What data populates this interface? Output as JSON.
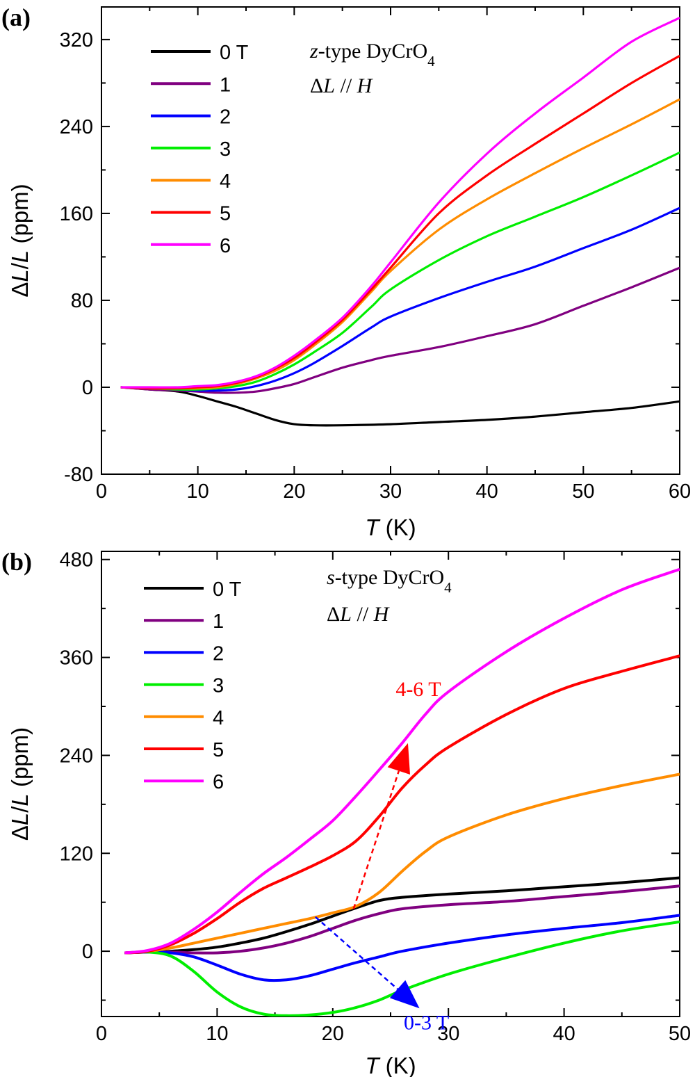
{
  "chart_data": [
    {
      "panel_label": "(a)",
      "type": "line",
      "xlabel": "T (K)",
      "ylabel": "ΔL/L (ppm)",
      "xlim": [
        0,
        60
      ],
      "ylim": [
        -80,
        350
      ],
      "xticks": [
        0,
        10,
        20,
        30,
        40,
        50,
        60
      ],
      "yticks": [
        -80,
        0,
        80,
        160,
        240,
        320
      ],
      "legend_unit": "T",
      "legend_position": "top-left",
      "annotation_lines": [
        "z-type DyCrO4",
        "ΔL // H"
      ],
      "series": [
        {
          "name": "0",
          "color": "#000000",
          "x": [
            2,
            5,
            8,
            10,
            12,
            14,
            16,
            18,
            20,
            22,
            25,
            30,
            35,
            40,
            45,
            50,
            55,
            60
          ],
          "y": [
            0,
            -2,
            -4,
            -8,
            -13,
            -18,
            -24,
            -30,
            -34,
            -35,
            -35,
            -34,
            -32,
            -30,
            -27,
            -23,
            -19,
            -13
          ]
        },
        {
          "name": "1",
          "color": "#800080",
          "x": [
            2,
            5,
            8,
            10,
            12,
            14,
            16,
            18,
            20,
            22,
            25,
            28,
            30,
            35,
            40,
            45,
            50,
            55,
            60
          ],
          "y": [
            0,
            -2,
            -3,
            -4,
            -5,
            -5,
            -4,
            -1,
            3,
            9,
            18,
            25,
            29,
            37,
            47,
            58,
            75,
            92,
            110
          ]
        },
        {
          "name": "2",
          "color": "#0000ff",
          "x": [
            2,
            5,
            8,
            10,
            12,
            14,
            16,
            18,
            20,
            22,
            25,
            28,
            30,
            35,
            40,
            45,
            50,
            55,
            60
          ],
          "y": [
            0,
            -1,
            -2,
            -3,
            -3,
            -2,
            1,
            6,
            13,
            22,
            38,
            55,
            65,
            82,
            97,
            111,
            128,
            145,
            165
          ]
        },
        {
          "name": "3",
          "color": "#00ee00",
          "x": [
            2,
            5,
            8,
            10,
            12,
            14,
            16,
            18,
            20,
            22,
            25,
            28,
            30,
            35,
            40,
            45,
            50,
            55,
            60
          ],
          "y": [
            0,
            -1,
            -2,
            -2,
            -1,
            1,
            5,
            12,
            21,
            32,
            50,
            74,
            90,
            117,
            139,
            157,
            175,
            195,
            216
          ]
        },
        {
          "name": "4",
          "color": "#ff8c00",
          "x": [
            2,
            5,
            8,
            10,
            12,
            14,
            16,
            18,
            20,
            22,
            25,
            28,
            30,
            35,
            40,
            45,
            50,
            55,
            60
          ],
          "y": [
            0,
            -1,
            -1,
            -1,
            0,
            3,
            8,
            15,
            25,
            38,
            60,
            88,
            107,
            145,
            173,
            197,
            220,
            242,
            265
          ]
        },
        {
          "name": "5",
          "color": "#ff0000",
          "x": [
            2,
            5,
            8,
            10,
            12,
            14,
            16,
            18,
            20,
            22,
            25,
            28,
            30,
            35,
            40,
            45,
            50,
            55,
            60
          ],
          "y": [
            0,
            -1,
            -1,
            0,
            1,
            4,
            9,
            17,
            27,
            40,
            62,
            90,
            110,
            160,
            195,
            224,
            252,
            280,
            305
          ]
        },
        {
          "name": "6",
          "color": "#ff00ff",
          "x": [
            2,
            5,
            8,
            10,
            12,
            14,
            16,
            18,
            20,
            22,
            25,
            28,
            30,
            35,
            40,
            45,
            50,
            55,
            60
          ],
          "y": [
            0,
            0,
            0,
            1,
            2,
            5,
            10,
            18,
            29,
            42,
            64,
            93,
            115,
            170,
            215,
            252,
            285,
            318,
            340
          ]
        }
      ]
    },
    {
      "panel_label": "(b)",
      "type": "line",
      "xlabel": "T (K)",
      "ylabel": "ΔL/L (ppm)",
      "xlim": [
        0,
        50
      ],
      "ylim": [
        -80,
        490
      ],
      "xticks": [
        0,
        10,
        20,
        30,
        40,
        50
      ],
      "yticks": [
        0,
        120,
        240,
        360,
        480
      ],
      "legend_unit": "T",
      "legend_position": "top-left",
      "annotation_lines": [
        "s-type DyCrO4",
        "ΔL // H"
      ],
      "arrows": [
        {
          "label": "4-6 T",
          "color": "#ff0000",
          "from": [
            21.8,
            52
          ],
          "to": [
            26.5,
            255
          ]
        },
        {
          "label": "0-3 T",
          "color": "#0000ff",
          "from": [
            18.5,
            42
          ],
          "to": [
            27.5,
            -70
          ]
        }
      ],
      "series": [
        {
          "name": "0",
          "color": "#000000",
          "x": [
            2,
            4,
            6,
            8,
            10,
            12,
            14,
            16,
            18,
            20,
            22,
            24,
            26,
            30,
            35,
            40,
            45,
            50
          ],
          "y": [
            -2,
            -1,
            0,
            2,
            5,
            10,
            16,
            24,
            33,
            43,
            53,
            62,
            66,
            70,
            74,
            79,
            84,
            90
          ]
        },
        {
          "name": "1",
          "color": "#800080",
          "x": [
            2,
            4,
            6,
            8,
            10,
            12,
            14,
            16,
            18,
            20,
            22,
            24,
            26,
            30,
            35,
            40,
            45,
            50
          ],
          "y": [
            -2,
            -1,
            -1,
            -2,
            -2,
            0,
            4,
            10,
            18,
            28,
            38,
            46,
            52,
            57,
            61,
            67,
            73,
            80
          ]
        },
        {
          "name": "2",
          "color": "#0000ff",
          "x": [
            2,
            4,
            6,
            8,
            10,
            12,
            14,
            16,
            18,
            20,
            22,
            24,
            26,
            30,
            35,
            40,
            45,
            50
          ],
          "y": [
            -2,
            -1,
            -2,
            -7,
            -17,
            -28,
            -35,
            -35,
            -30,
            -22,
            -14,
            -7,
            0,
            10,
            20,
            28,
            35,
            44
          ]
        },
        {
          "name": "3",
          "color": "#00ee00",
          "x": [
            2,
            4,
            6,
            8,
            10,
            12,
            14,
            16,
            18,
            20,
            22,
            24,
            26,
            30,
            35,
            40,
            45,
            50
          ],
          "y": [
            -2,
            -1,
            -6,
            -25,
            -50,
            -68,
            -77,
            -79,
            -78,
            -75,
            -69,
            -60,
            -48,
            -28,
            -8,
            10,
            25,
            36
          ]
        },
        {
          "name": "4",
          "color": "#ff8c00",
          "x": [
            2,
            4,
            6,
            8,
            10,
            12,
            14,
            16,
            18,
            20,
            22,
            24,
            26,
            28,
            30,
            35,
            40,
            45,
            50
          ],
          "y": [
            -2,
            0,
            4,
            10,
            16,
            22,
            28,
            34,
            40,
            47,
            55,
            72,
            98,
            122,
            140,
            167,
            187,
            203,
            217
          ]
        },
        {
          "name": "5",
          "color": "#ff0000",
          "x": [
            2,
            4,
            6,
            8,
            10,
            12,
            14,
            16,
            18,
            20,
            22,
            24,
            26,
            28,
            30,
            35,
            40,
            45,
            50
          ],
          "y": [
            -2,
            0,
            8,
            22,
            40,
            60,
            77,
            90,
            103,
            117,
            135,
            165,
            200,
            228,
            250,
            290,
            322,
            343,
            362
          ]
        },
        {
          "name": "6",
          "color": "#ff00ff",
          "x": [
            2,
            4,
            6,
            8,
            10,
            12,
            14,
            16,
            18,
            20,
            22,
            24,
            26,
            28,
            30,
            35,
            40,
            45,
            50
          ],
          "y": [
            -2,
            1,
            10,
            27,
            48,
            72,
            95,
            115,
            137,
            160,
            190,
            222,
            255,
            290,
            318,
            367,
            408,
            443,
            468
          ]
        }
      ]
    }
  ]
}
